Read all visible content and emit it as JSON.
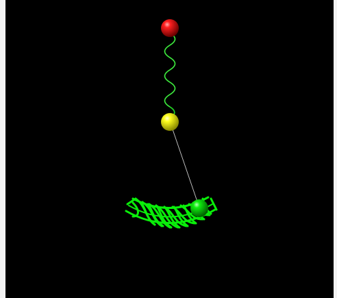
{
  "scene": {
    "background": "#000000",
    "frame_color": "#f3f3f3",
    "objects": [
      {
        "name": "pivot-ball",
        "color": "#ff0000"
      },
      {
        "name": "middle-ball",
        "color": "#ffff00"
      },
      {
        "name": "pendulum-bob",
        "color": "#00ee00"
      }
    ],
    "spring_color": "#22cc22",
    "rod_color": "#cccccc",
    "bowl_color": "#00ee00"
  }
}
